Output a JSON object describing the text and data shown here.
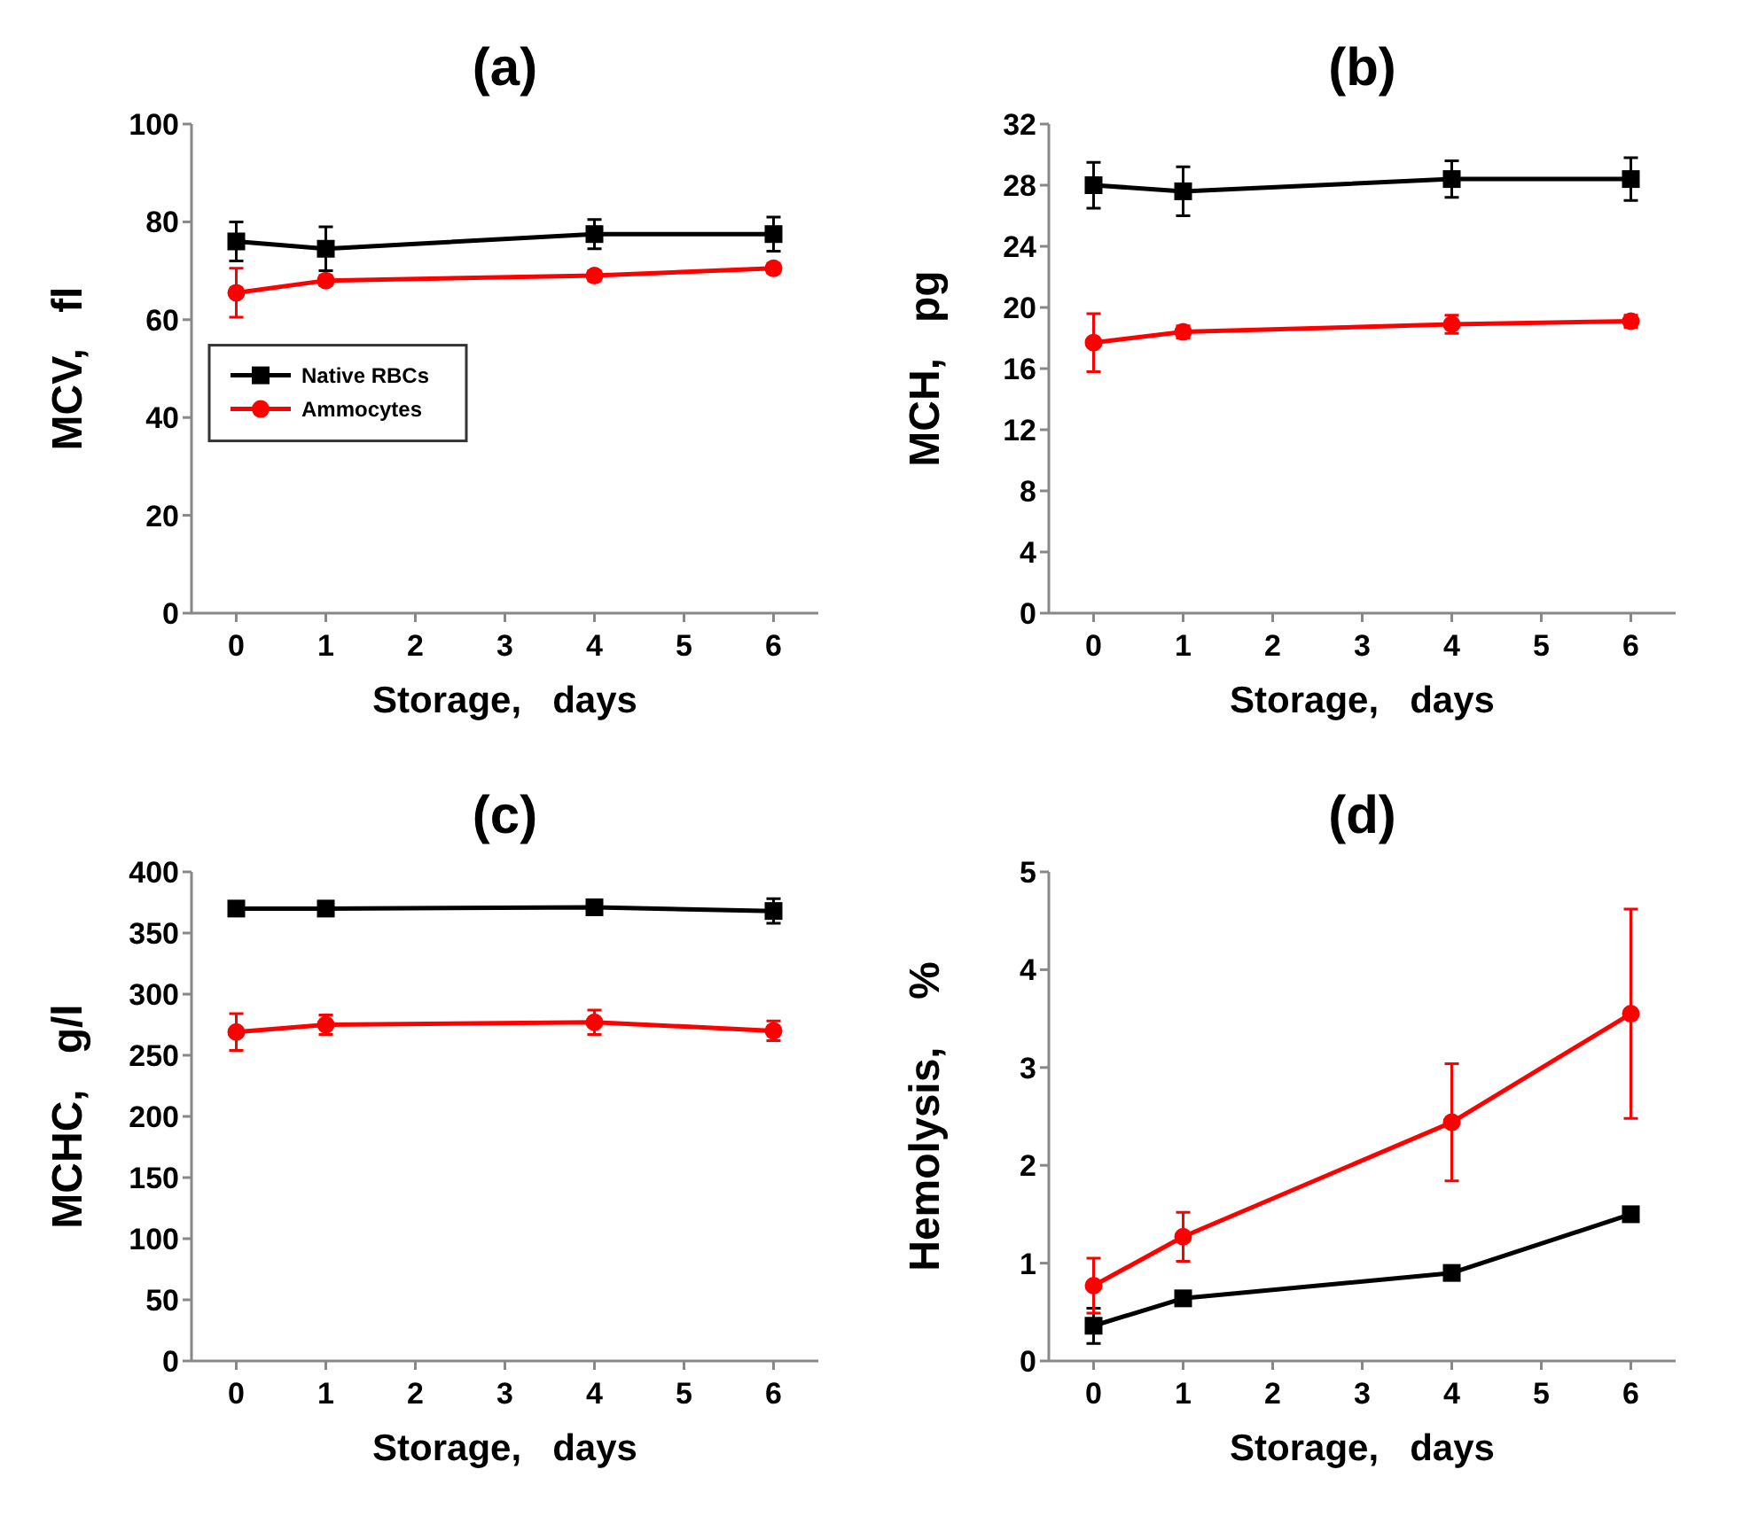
{
  "chart_data": [
    {
      "type": "line",
      "title": "(a)",
      "xlabel": "Storage,   days",
      "ylabel": "MCV,   fl",
      "x": [
        0,
        1,
        4,
        6
      ],
      "xlim": [
        -0.5,
        6.5
      ],
      "xticks": [
        0,
        1,
        2,
        3,
        4,
        5,
        6
      ],
      "ylim": [
        0,
        100
      ],
      "yticks": [
        0,
        20,
        40,
        60,
        80,
        100
      ],
      "legend": "left",
      "grid": false,
      "series": [
        {
          "name": "Native RBCs",
          "color": "#000000",
          "marker": "square",
          "values": [
            76,
            74.5,
            77.5,
            77.5
          ],
          "errors": [
            4,
            4.5,
            3,
            3.5
          ]
        },
        {
          "name": "Ammocytes",
          "color": "#ff0000",
          "marker": "circle",
          "values": [
            65.5,
            68,
            69,
            70.5
          ],
          "errors": [
            5,
            1,
            1,
            1
          ]
        }
      ]
    },
    {
      "type": "line",
      "title": "(b)",
      "xlabel": "Storage,   days",
      "ylabel": "MCH,   pg",
      "x": [
        0,
        1,
        4,
        6
      ],
      "xlim": [
        -0.5,
        6.5
      ],
      "xticks": [
        0,
        1,
        2,
        3,
        4,
        5,
        6
      ],
      "ylim": [
        0,
        32
      ],
      "yticks": [
        0,
        4,
        8,
        12,
        16,
        20,
        24,
        28,
        32
      ],
      "legend": false,
      "grid": false,
      "series": [
        {
          "color": "#000000",
          "marker": "square",
          "values": [
            28,
            27.6,
            28.4,
            28.4
          ],
          "errors": [
            1.5,
            1.6,
            1.2,
            1.4
          ]
        },
        {
          "color": "#ff0000",
          "marker": "circle",
          "values": [
            17.7,
            18.4,
            18.9,
            19.1
          ],
          "errors": [
            1.9,
            0.4,
            0.6,
            0.4
          ]
        }
      ]
    },
    {
      "type": "line",
      "title": "(c)",
      "xlabel": "Storage,   days",
      "ylabel": "MCHC,   g/l",
      "x": [
        0,
        1,
        4,
        6
      ],
      "xlim": [
        -0.5,
        6.5
      ],
      "xticks": [
        0,
        1,
        2,
        3,
        4,
        5,
        6
      ],
      "ylim": [
        0,
        400
      ],
      "yticks": [
        0,
        50,
        100,
        150,
        200,
        250,
        300,
        350,
        400
      ],
      "legend": false,
      "grid": false,
      "series": [
        {
          "color": "#000000",
          "marker": "square",
          "values": [
            370,
            370,
            371,
            368
          ],
          "errors": [
            null,
            null,
            null,
            10
          ]
        },
        {
          "color": "#ff0000",
          "marker": "circle",
          "values": [
            269,
            275,
            277,
            270
          ],
          "errors": [
            15,
            8,
            10,
            8
          ]
        }
      ]
    },
    {
      "type": "line",
      "title": "(d)",
      "xlabel": "Storage,   days",
      "ylabel": "Hemolysis,    %",
      "x": [
        0,
        1,
        4,
        6
      ],
      "xlim": [
        -0.5,
        6.5
      ],
      "xticks": [
        0,
        1,
        2,
        3,
        4,
        5,
        6
      ],
      "ylim": [
        0,
        5
      ],
      "yticks": [
        0,
        1,
        2,
        3,
        4,
        5
      ],
      "legend": false,
      "grid": false,
      "series": [
        {
          "color": "#000000",
          "marker": "square",
          "values": [
            0.36,
            0.64,
            0.9,
            1.5
          ],
          "errors": [
            0.18,
            null,
            null,
            null
          ]
        },
        {
          "color": "#ff0000",
          "marker": "circle",
          "values": [
            0.77,
            1.27,
            2.44,
            3.55
          ],
          "errors": [
            0.28,
            0.25,
            0.6,
            1.07
          ]
        }
      ]
    }
  ]
}
